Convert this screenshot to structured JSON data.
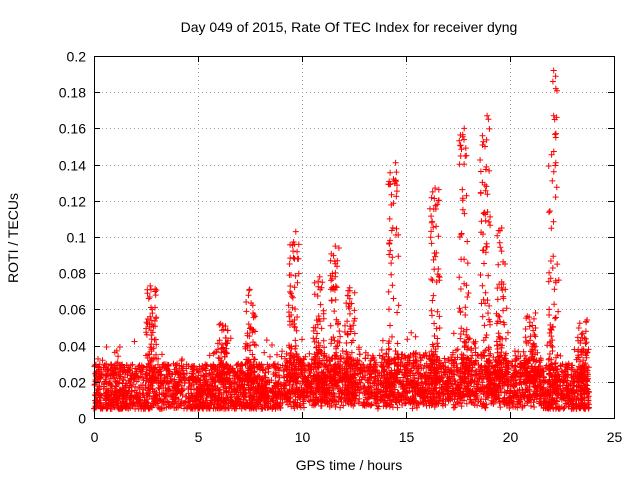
{
  "chart_data": {
    "type": "scatter",
    "title": "Day 049 of 2015, Rate Of TEC Index for receiver dyng",
    "xlabel": "GPS time / hours",
    "ylabel": "ROTI / TECUs",
    "xlim": [
      0,
      25
    ],
    "ylim": [
      0,
      0.2
    ],
    "x_ticks": [
      0,
      5,
      10,
      15,
      20,
      25
    ],
    "x_tick_labels": [
      "0",
      "5",
      "10",
      "15",
      "20",
      "25"
    ],
    "y_ticks": [
      0,
      0.02,
      0.04,
      0.06,
      0.08,
      0.1,
      0.12,
      0.14,
      0.16,
      0.18,
      0.2
    ],
    "y_tick_labels": [
      "0",
      "0.02",
      "0.04",
      "0.06",
      "0.08",
      "0.1",
      "0.12",
      "0.14",
      "0.16",
      "0.18",
      "0.2"
    ],
    "grid": true,
    "marker": "plus",
    "series_color": "#ff0000",
    "data_x_range": [
      0,
      23.8
    ],
    "baseline_range": [
      0.005,
      0.03
    ],
    "notable_points": [
      {
        "x": 2.7,
        "y": 0.073
      },
      {
        "x": 2.8,
        "y": 0.06
      },
      {
        "x": 9.7,
        "y": 0.103
      },
      {
        "x": 11.6,
        "y": 0.095
      },
      {
        "x": 14.5,
        "y": 0.141
      },
      {
        "x": 14.4,
        "y": 0.132
      },
      {
        "x": 16.4,
        "y": 0.127
      },
      {
        "x": 16.5,
        "y": 0.118
      },
      {
        "x": 17.8,
        "y": 0.16
      },
      {
        "x": 17.9,
        "y": 0.145
      },
      {
        "x": 18.9,
        "y": 0.167
      },
      {
        "x": 18.8,
        "y": 0.15
      },
      {
        "x": 19.6,
        "y": 0.105
      },
      {
        "x": 22.1,
        "y": 0.192
      },
      {
        "x": 22.2,
        "y": 0.182
      },
      {
        "x": 22.1,
        "y": 0.167
      },
      {
        "x": 22.2,
        "y": 0.155
      },
      {
        "x": 22.2,
        "y": 0.141
      }
    ],
    "spike_clusters": [
      {
        "x": 2.75,
        "peak": 0.073
      },
      {
        "x": 6.2,
        "peak": 0.053
      },
      {
        "x": 7.5,
        "peak": 0.072
      },
      {
        "x": 9.6,
        "peak": 0.1
      },
      {
        "x": 10.8,
        "peak": 0.083
      },
      {
        "x": 11.6,
        "peak": 0.095
      },
      {
        "x": 12.3,
        "peak": 0.075
      },
      {
        "x": 14.4,
        "peak": 0.141
      },
      {
        "x": 16.4,
        "peak": 0.127
      },
      {
        "x": 17.8,
        "peak": 0.16
      },
      {
        "x": 18.8,
        "peak": 0.167
      },
      {
        "x": 19.6,
        "peak": 0.105
      },
      {
        "x": 21.0,
        "peak": 0.06
      },
      {
        "x": 22.1,
        "peak": 0.192
      },
      {
        "x": 23.5,
        "peak": 0.055
      }
    ]
  }
}
